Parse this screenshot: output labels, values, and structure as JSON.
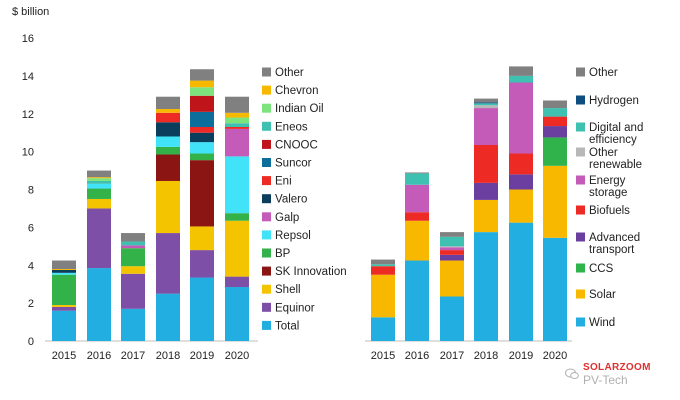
{
  "colors": {
    "Total": "#22aee0",
    "Equinor": "#7d4fa6",
    "Shell": "#f5c400",
    "SK Innovation": "#8b1512",
    "BP": "#33b24a",
    "Repsol": "#40e3f7",
    "Galp": "#c45bb9",
    "Valero": "#0b3d5c",
    "Eni": "#ee2a24",
    "Suncor": "#0d6e9c",
    "CNOOC": "#c0141b",
    "Eneos": "#3fc1b2",
    "Indian Oil": "#7de37d",
    "Chevron": "#f7b800",
    "Other": "#808080",
    "Wind": "#22aee0",
    "Solar": "#f9b800",
    "CCS": "#2fb34a",
    "Advanced transport": "#6b3fa0",
    "Biofuels": "#ee2a24",
    "Energy storage": "#c45bb9",
    "Other renewable": "#b8b8b8",
    "Digital and efficiency": "#3fc1b2",
    "Hydrogen": "#0d4d80",
    "Other (tech)": "#808080"
  },
  "chart_data": [
    {
      "type": "bar",
      "stacked": true,
      "title": "",
      "ylabel": "$ billion",
      "xlabel": "",
      "ylim": [
        0,
        16
      ],
      "yticks": [
        "0",
        "2",
        "4",
        "6",
        "8",
        "10",
        "12",
        "14",
        "16"
      ],
      "categories": [
        "2015",
        "2016",
        "2017",
        "2018",
        "2019",
        "2020"
      ],
      "legend_position": "right",
      "series": [
        {
          "name": "Total",
          "values": [
            1.6,
            3.85,
            1.7,
            2.5,
            3.35,
            2.85
          ]
        },
        {
          "name": "Equinor",
          "values": [
            0.2,
            3.15,
            1.85,
            3.2,
            1.45,
            0.55
          ]
        },
        {
          "name": "Shell",
          "values": [
            0.1,
            0.5,
            0.4,
            2.75,
            1.25,
            2.95
          ]
        },
        {
          "name": "SK Innovation",
          "values": [
            0,
            0,
            0,
            1.4,
            3.5,
            0
          ]
        },
        {
          "name": "BP",
          "values": [
            1.6,
            0.55,
            0.95,
            0.4,
            0.35,
            0.4
          ]
        },
        {
          "name": "Repsol",
          "values": [
            0.1,
            0.25,
            0,
            0.55,
            0.6,
            3.0
          ]
        },
        {
          "name": "Galp",
          "values": [
            0,
            0,
            0.15,
            0,
            0,
            1.45
          ]
        },
        {
          "name": "Valero",
          "values": [
            0.15,
            0,
            0,
            0.75,
            0.5,
            0
          ]
        },
        {
          "name": "Eni",
          "values": [
            0,
            0,
            0,
            0.5,
            0.3,
            0.1
          ]
        },
        {
          "name": "Suncor",
          "values": [
            0,
            0,
            0,
            0,
            0.8,
            0
          ]
        },
        {
          "name": "CNOOC",
          "values": [
            0,
            0,
            0,
            0,
            0.85,
            0
          ]
        },
        {
          "name": "Eneos",
          "values": [
            0,
            0.15,
            0.2,
            0,
            0,
            0.2
          ]
        },
        {
          "name": "Indian Oil",
          "values": [
            0,
            0.15,
            0,
            0,
            0.45,
            0.3
          ]
        },
        {
          "name": "Chevron",
          "values": [
            0.05,
            0.05,
            0,
            0.2,
            0.35,
            0.25
          ]
        },
        {
          "name": "Other",
          "values": [
            0.45,
            0.35,
            0.45,
            0.65,
            0.6,
            0.85
          ]
        }
      ]
    },
    {
      "type": "bar",
      "stacked": true,
      "title": "",
      "ylabel": "",
      "xlabel": "",
      "ylim": [
        0,
        16
      ],
      "categories": [
        "2015",
        "2016",
        "2017",
        "2018",
        "2019",
        "2020"
      ],
      "legend_position": "right",
      "series": [
        {
          "name": "Wind",
          "values": [
            1.25,
            4.25,
            2.35,
            5.75,
            6.25,
            5.45
          ]
        },
        {
          "name": "Solar",
          "values": [
            2.25,
            2.1,
            1.9,
            1.7,
            1.75,
            3.8
          ]
        },
        {
          "name": "CCS",
          "values": [
            0,
            0,
            0,
            0,
            0,
            1.5
          ]
        },
        {
          "name": "Advanced transport",
          "values": [
            0,
            0,
            0.3,
            0.9,
            0.8,
            0.6
          ]
        },
        {
          "name": "Biofuels",
          "values": [
            0.45,
            0.45,
            0.25,
            2.0,
            1.1,
            0.5
          ]
        },
        {
          "name": "Energy storage",
          "values": [
            0,
            1.45,
            0.15,
            1.95,
            3.75,
            0
          ]
        },
        {
          "name": "Other renewable",
          "values": [
            0,
            0,
            0.05,
            0.15,
            0,
            0
          ]
        },
        {
          "name": "Digital and efficiency",
          "values": [
            0.1,
            0.6,
            0.5,
            0.1,
            0.35,
            0.45
          ]
        },
        {
          "name": "Hydrogen",
          "values": [
            0,
            0,
            0,
            0.05,
            0,
            0
          ]
        },
        {
          "name": "Other",
          "values": [
            0.25,
            0.05,
            0.25,
            0.2,
            0.5,
            0.4
          ]
        }
      ]
    }
  ],
  "legends": [
    {
      "items": [
        {
          "label": "Other",
          "series": "Other"
        },
        {
          "label": "Chevron",
          "series": "Chevron"
        },
        {
          "label": "Indian Oil",
          "series": "Indian Oil"
        },
        {
          "label": "Eneos",
          "series": "Eneos"
        },
        {
          "label": "CNOOC",
          "series": "CNOOC"
        },
        {
          "label": "Suncor",
          "series": "Suncor"
        },
        {
          "label": "Eni",
          "series": "Eni"
        },
        {
          "label": "Valero",
          "series": "Valero"
        },
        {
          "label": "Galp",
          "series": "Galp"
        },
        {
          "label": "Repsol",
          "series": "Repsol"
        },
        {
          "label": "BP",
          "series": "BP"
        },
        {
          "label": "SK Innovation",
          "series": "SK Innovation"
        },
        {
          "label": "Shell",
          "series": "Shell"
        },
        {
          "label": "Equinor",
          "series": "Equinor"
        },
        {
          "label": "Total",
          "series": "Total"
        }
      ]
    },
    {
      "items": [
        {
          "label": "Other",
          "series": "Other (tech)",
          "lines": [
            "Other"
          ]
        },
        {
          "label": "Hydrogen",
          "series": "Hydrogen",
          "lines": [
            "Hydrogen"
          ]
        },
        {
          "label": "Digital and efficiency",
          "series": "Digital and efficiency",
          "lines": [
            "Digital and",
            "efficiency"
          ]
        },
        {
          "label": "Other renewable",
          "series": "Other renewable",
          "lines": [
            "Other",
            "renewable"
          ]
        },
        {
          "label": "Energy storage",
          "series": "Energy storage",
          "lines": [
            "Energy",
            "storage"
          ]
        },
        {
          "label": "Biofuels",
          "series": "Biofuels",
          "lines": [
            "Biofuels"
          ]
        },
        {
          "label": "Advanced transport",
          "series": "Advanced transport",
          "lines": [
            "Advanced",
            "transport"
          ]
        },
        {
          "label": "CCS",
          "series": "CCS",
          "lines": [
            "CCS"
          ]
        },
        {
          "label": "Solar",
          "series": "Solar",
          "lines": [
            "Solar"
          ]
        },
        {
          "label": "Wind",
          "series": "Wind",
          "lines": [
            "Wind"
          ]
        }
      ]
    }
  ],
  "watermark": {
    "top": "SOLARZOOM",
    "bottom": "PV-Tech"
  }
}
